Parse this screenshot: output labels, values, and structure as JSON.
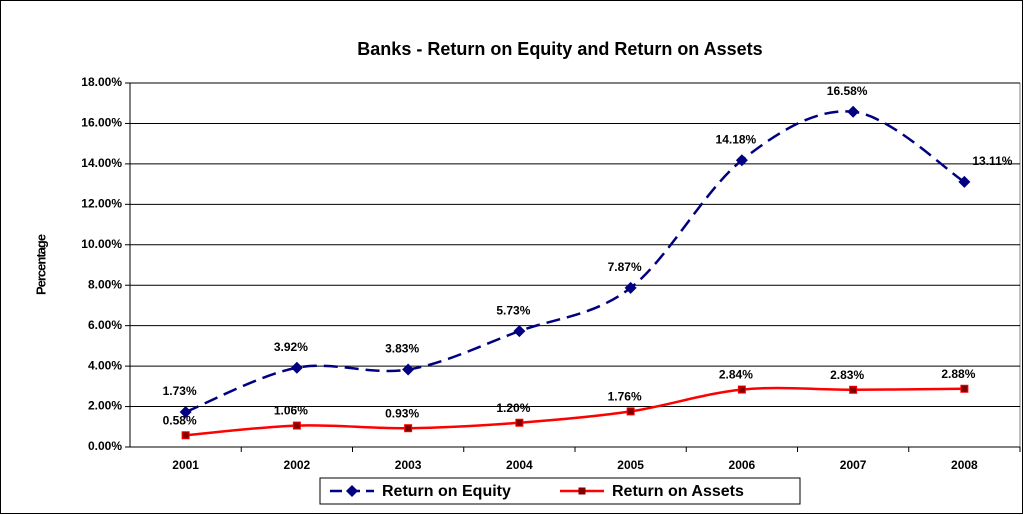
{
  "chart_data": {
    "type": "line",
    "title": "Banks - Return on Equity and Return on Assets",
    "y_label": "Percentage",
    "categories": [
      "2001",
      "2002",
      "2003",
      "2004",
      "2005",
      "2006",
      "2007",
      "2008"
    ],
    "series": [
      {
        "name": "Return on Equity",
        "color": "#000080",
        "marker_color": "#000080",
        "dashed": true,
        "marker": "diamond",
        "values": [
          1.73,
          3.92,
          3.83,
          5.73,
          7.87,
          14.18,
          16.58,
          13.11
        ],
        "value_labels": [
          "1.73%",
          "3.92%",
          "3.83%",
          "5.73%",
          "7.87%",
          "14.18%",
          "16.58%",
          "13.11%"
        ]
      },
      {
        "name": "Return on Assets",
        "color": "#ff0000",
        "marker_color": "#800000",
        "dashed": false,
        "marker": "square",
        "values": [
          0.58,
          1.06,
          0.93,
          1.2,
          1.76,
          2.84,
          2.83,
          2.88
        ],
        "value_labels": [
          "0.58%",
          "1.06%",
          "0.93%",
          "1.20%",
          "1.76%",
          "2.84%",
          "2.83%",
          "2.88%"
        ]
      }
    ],
    "ylim": [
      0,
      18
    ],
    "yticks": [
      {
        "value": 0,
        "label": "0.00%"
      },
      {
        "value": 2,
        "label": "2.00%"
      },
      {
        "value": 4,
        "label": "4.00%"
      },
      {
        "value": 6,
        "label": "6.00%"
      },
      {
        "value": 8,
        "label": "8.00%"
      },
      {
        "value": 10,
        "label": "10.00%"
      },
      {
        "value": 12,
        "label": "12.00%"
      },
      {
        "value": 14,
        "label": "14.00%"
      },
      {
        "value": 16,
        "label": "16.00%"
      },
      {
        "value": 18,
        "label": "18.00%"
      }
    ],
    "grid": true,
    "legend": "bottom"
  }
}
